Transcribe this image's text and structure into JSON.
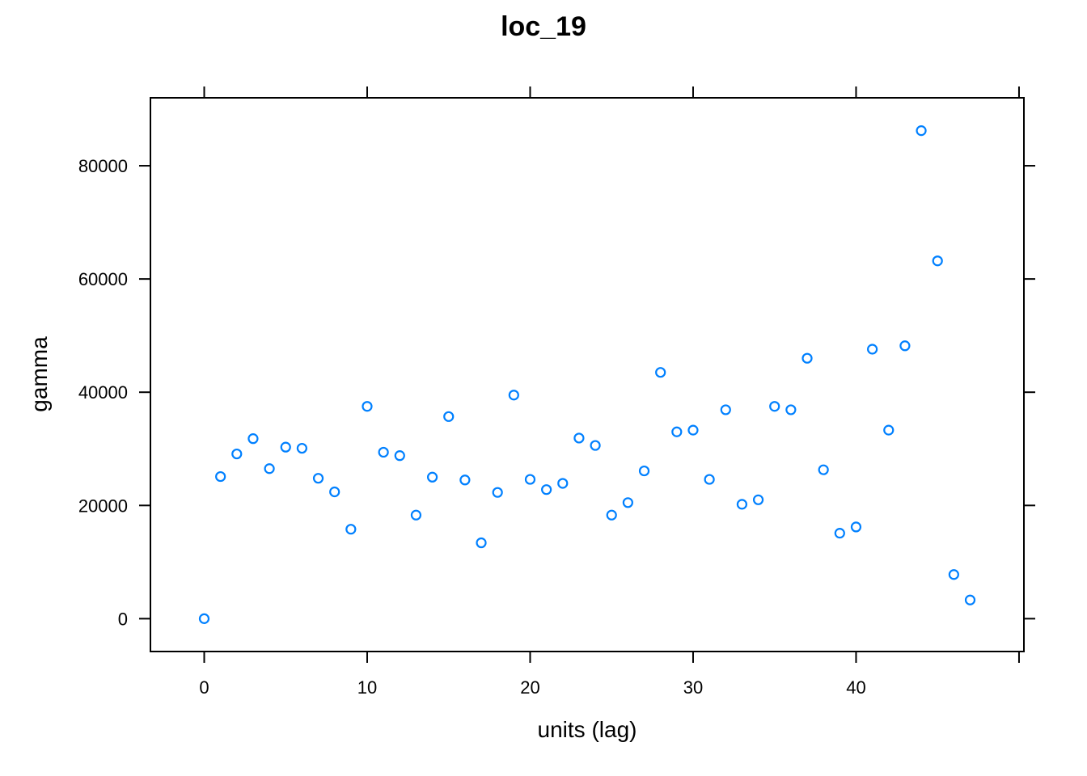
{
  "chart_data": {
    "type": "scatter",
    "title": "loc_19",
    "xlabel": "units (lag)",
    "ylabel": "gamma",
    "xlim": [
      -3.3,
      50.3
    ],
    "ylim": [
      -5800,
      92000
    ],
    "xticks": [
      0,
      10,
      20,
      30,
      40
    ],
    "yticks": [
      0,
      20000,
      40000,
      60000,
      80000
    ],
    "grid": false,
    "legend": "none",
    "point_color": "#0080ff",
    "series": [
      {
        "x": [
          0,
          1,
          2,
          3,
          4,
          5,
          6,
          7,
          8,
          9,
          10,
          11,
          12,
          13,
          14,
          15,
          16,
          17,
          18,
          19,
          20,
          21,
          22,
          23,
          24,
          25,
          26,
          27,
          28,
          29,
          30,
          31,
          32,
          33,
          34,
          35,
          36,
          37,
          38,
          39,
          40,
          41,
          42,
          43,
          44,
          45,
          46,
          47
        ],
        "y": [
          0,
          25100,
          29100,
          31800,
          26500,
          30300,
          30100,
          24800,
          22400,
          15800,
          37500,
          29400,
          28800,
          18300,
          25000,
          35700,
          24500,
          13400,
          22300,
          39500,
          24600,
          22800,
          23900,
          31900,
          30600,
          18300,
          20500,
          26100,
          43500,
          33000,
          33300,
          24600,
          36900,
          20200,
          21000,
          37500,
          36900,
          46000,
          26300,
          15100,
          16200,
          47600,
          33300,
          48200,
          86200,
          63200,
          7800,
          3300
        ]
      }
    ]
  }
}
